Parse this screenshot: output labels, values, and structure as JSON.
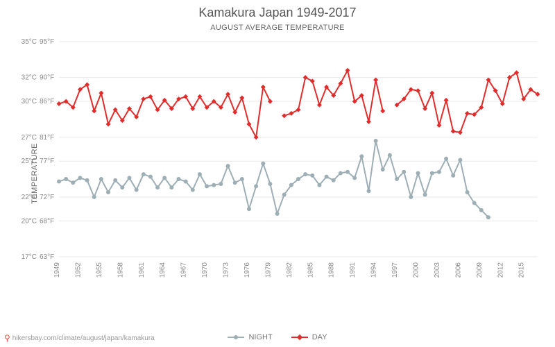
{
  "title": "Kamakura Japan 1949-2017",
  "subtitle": "August average temperature",
  "ylabel": "Temperature",
  "attribution": "hikersbay.com/climate/august/japan/kamakura",
  "legend": {
    "night": "NIGHT",
    "day": "DAY"
  },
  "chart": {
    "type": "line",
    "background": "#ffffff",
    "grid_color": "#e9e9e9",
    "title_fontsize": 18,
    "subtitle_fontsize": 11,
    "label_fontsize": 11,
    "tick_fontsize": 10,
    "ylim": [
      17,
      35
    ],
    "yticks": [
      {
        "c": 17,
        "c_label": "17°C",
        "f_label": "63°F"
      },
      {
        "c": 20,
        "c_label": "20°C",
        "f_label": "68°F"
      },
      {
        "c": 22,
        "c_label": "22°C",
        "f_label": "72°F"
      },
      {
        "c": 25,
        "c_label": "25°C",
        "f_label": "77°F"
      },
      {
        "c": 27,
        "c_label": "27°C",
        "f_label": "81°F"
      },
      {
        "c": 30,
        "c_label": "30°C",
        "f_label": "86°F"
      },
      {
        "c": 32,
        "c_label": "32°C",
        "f_label": "90°F"
      },
      {
        "c": 35,
        "c_label": "35°C",
        "f_label": "95°F"
      }
    ],
    "xlim": [
      1949,
      2017
    ],
    "xticks": [
      1949,
      1952,
      1955,
      1958,
      1961,
      1964,
      1967,
      1970,
      1973,
      1976,
      1979,
      1982,
      1985,
      1988,
      1991,
      1994,
      1997,
      2000,
      2003,
      2006,
      2009,
      2012,
      2015
    ],
    "series": [
      {
        "name": "day",
        "color": "#e22c2c",
        "marker": "diamond",
        "marker_size": 5,
        "line_width": 2,
        "gaps_at": [
          1980,
          1996
        ],
        "data": [
          {
            "x": 1949,
            "y": 29.8
          },
          {
            "x": 1950,
            "y": 30.0
          },
          {
            "x": 1951,
            "y": 29.5
          },
          {
            "x": 1952,
            "y": 31.0
          },
          {
            "x": 1953,
            "y": 31.4
          },
          {
            "x": 1954,
            "y": 29.2
          },
          {
            "x": 1955,
            "y": 30.7
          },
          {
            "x": 1956,
            "y": 28.1
          },
          {
            "x": 1957,
            "y": 29.3
          },
          {
            "x": 1958,
            "y": 28.4
          },
          {
            "x": 1959,
            "y": 29.4
          },
          {
            "x": 1960,
            "y": 28.7
          },
          {
            "x": 1961,
            "y": 30.2
          },
          {
            "x": 1962,
            "y": 30.4
          },
          {
            "x": 1963,
            "y": 29.3
          },
          {
            "x": 1964,
            "y": 30.1
          },
          {
            "x": 1965,
            "y": 29.4
          },
          {
            "x": 1966,
            "y": 30.2
          },
          {
            "x": 1967,
            "y": 30.4
          },
          {
            "x": 1968,
            "y": 29.4
          },
          {
            "x": 1969,
            "y": 30.4
          },
          {
            "x": 1970,
            "y": 29.5
          },
          {
            "x": 1971,
            "y": 30.0
          },
          {
            "x": 1972,
            "y": 29.5
          },
          {
            "x": 1973,
            "y": 30.6
          },
          {
            "x": 1974,
            "y": 29.1
          },
          {
            "x": 1975,
            "y": 30.3
          },
          {
            "x": 1976,
            "y": 28.1
          },
          {
            "x": 1977,
            "y": 27.0
          },
          {
            "x": 1978,
            "y": 31.2
          },
          {
            "x": 1979,
            "y": 30.0
          },
          {
            "x": 1981,
            "y": 28.8
          },
          {
            "x": 1982,
            "y": 29.0
          },
          {
            "x": 1983,
            "y": 29.3
          },
          {
            "x": 1984,
            "y": 32.0
          },
          {
            "x": 1985,
            "y": 31.7
          },
          {
            "x": 1986,
            "y": 29.7
          },
          {
            "x": 1987,
            "y": 31.2
          },
          {
            "x": 1988,
            "y": 30.5
          },
          {
            "x": 1989,
            "y": 31.5
          },
          {
            "x": 1990,
            "y": 32.6
          },
          {
            "x": 1991,
            "y": 30.0
          },
          {
            "x": 1992,
            "y": 30.5
          },
          {
            "x": 1993,
            "y": 28.3
          },
          {
            "x": 1994,
            "y": 31.8
          },
          {
            "x": 1995,
            "y": 29.2
          },
          {
            "x": 1997,
            "y": 29.7
          },
          {
            "x": 1998,
            "y": 30.2
          },
          {
            "x": 1999,
            "y": 31.0
          },
          {
            "x": 2000,
            "y": 30.9
          },
          {
            "x": 2001,
            "y": 29.4
          },
          {
            "x": 2002,
            "y": 30.7
          },
          {
            "x": 2003,
            "y": 28.0
          },
          {
            "x": 2004,
            "y": 30.1
          },
          {
            "x": 2005,
            "y": 27.5
          },
          {
            "x": 2006,
            "y": 27.4
          },
          {
            "x": 2007,
            "y": 29.0
          },
          {
            "x": 2008,
            "y": 28.9
          },
          {
            "x": 2009,
            "y": 29.5
          },
          {
            "x": 2010,
            "y": 31.8
          },
          {
            "x": 2011,
            "y": 30.9
          },
          {
            "x": 2012,
            "y": 29.8
          },
          {
            "x": 2013,
            "y": 32.0
          },
          {
            "x": 2014,
            "y": 32.4
          },
          {
            "x": 2015,
            "y": 30.2
          },
          {
            "x": 2016,
            "y": 31.0
          },
          {
            "x": 2017,
            "y": 30.6
          }
        ]
      },
      {
        "name": "night",
        "color": "#9daeb5",
        "marker": "circle",
        "marker_size": 4,
        "line_width": 2,
        "gaps_at": [],
        "data": [
          {
            "x": 1949,
            "y": 23.3
          },
          {
            "x": 1950,
            "y": 23.5
          },
          {
            "x": 1951,
            "y": 23.2
          },
          {
            "x": 1952,
            "y": 23.6
          },
          {
            "x": 1953,
            "y": 23.4
          },
          {
            "x": 1954,
            "y": 22.0
          },
          {
            "x": 1955,
            "y": 23.5
          },
          {
            "x": 1956,
            "y": 22.4
          },
          {
            "x": 1957,
            "y": 23.4
          },
          {
            "x": 1958,
            "y": 22.8
          },
          {
            "x": 1959,
            "y": 23.6
          },
          {
            "x": 1960,
            "y": 22.6
          },
          {
            "x": 1961,
            "y": 23.9
          },
          {
            "x": 1962,
            "y": 23.7
          },
          {
            "x": 1963,
            "y": 22.8
          },
          {
            "x": 1964,
            "y": 23.6
          },
          {
            "x": 1965,
            "y": 22.8
          },
          {
            "x": 1966,
            "y": 23.5
          },
          {
            "x": 1967,
            "y": 23.3
          },
          {
            "x": 1968,
            "y": 22.6
          },
          {
            "x": 1969,
            "y": 23.9
          },
          {
            "x": 1970,
            "y": 22.9
          },
          {
            "x": 1971,
            "y": 23.0
          },
          {
            "x": 1972,
            "y": 23.1
          },
          {
            "x": 1973,
            "y": 24.6
          },
          {
            "x": 1974,
            "y": 23.2
          },
          {
            "x": 1975,
            "y": 23.5
          },
          {
            "x": 1976,
            "y": 21.0
          },
          {
            "x": 1977,
            "y": 22.9
          },
          {
            "x": 1978,
            "y": 24.8
          },
          {
            "x": 1979,
            "y": 23.1
          },
          {
            "x": 1980,
            "y": 20.6
          },
          {
            "x": 1981,
            "y": 22.2
          },
          {
            "x": 1982,
            "y": 23.0
          },
          {
            "x": 1983,
            "y": 23.5
          },
          {
            "x": 1984,
            "y": 23.9
          },
          {
            "x": 1985,
            "y": 23.8
          },
          {
            "x": 1986,
            "y": 23.0
          },
          {
            "x": 1987,
            "y": 23.7
          },
          {
            "x": 1988,
            "y": 23.4
          },
          {
            "x": 1989,
            "y": 24.0
          },
          {
            "x": 1990,
            "y": 24.1
          },
          {
            "x": 1991,
            "y": 23.6
          },
          {
            "x": 1992,
            "y": 25.4
          },
          {
            "x": 1993,
            "y": 22.5
          },
          {
            "x": 1994,
            "y": 26.7
          },
          {
            "x": 1995,
            "y": 24.3
          },
          {
            "x": 1996,
            "y": 25.5
          },
          {
            "x": 1997,
            "y": 23.5
          },
          {
            "x": 1998,
            "y": 24.1
          },
          {
            "x": 1999,
            "y": 22.0
          },
          {
            "x": 2000,
            "y": 24.0
          },
          {
            "x": 2001,
            "y": 22.2
          },
          {
            "x": 2002,
            "y": 24.0
          },
          {
            "x": 2003,
            "y": 24.1
          },
          {
            "x": 2004,
            "y": 25.2
          },
          {
            "x": 2005,
            "y": 23.8
          },
          {
            "x": 2006,
            "y": 25.1
          },
          {
            "x": 2007,
            "y": 22.4
          },
          {
            "x": 2008,
            "y": 21.5
          },
          {
            "x": 2009,
            "y": 20.9
          },
          {
            "x": 2010,
            "y": 20.3
          }
        ]
      }
    ]
  }
}
